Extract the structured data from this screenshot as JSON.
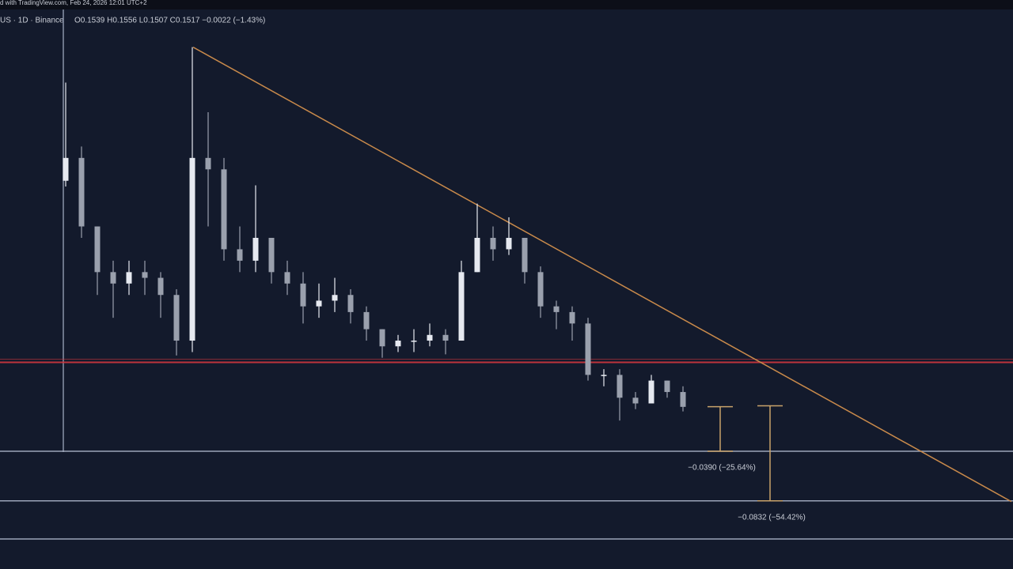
{
  "header": {
    "source": "d with TradingView.com, Feb 24, 2026 12:01 UTC+2",
    "symbol": "US · 1D · Binance",
    "ohlc": "O0.1539  H0.1556  L0.1507  C0.1517  −0.0022 (−1.43%)"
  },
  "chart_data": {
    "type": "candlestick",
    "ylim": [
      0.01,
      0.5
    ],
    "up_color": "#e6e9f0",
    "down_color": "#9aa0ad",
    "candles": {
      "open": [
        0.35,
        0.37,
        0.31,
        0.27,
        0.26,
        0.27,
        0.265,
        0.25,
        0.21,
        0.37,
        0.36,
        0.29,
        0.28,
        0.3,
        0.27,
        0.26,
        0.24,
        0.245,
        0.25,
        0.235,
        0.22,
        0.205,
        0.21,
        0.21,
        0.215,
        0.21,
        0.27,
        0.3,
        0.29,
        0.3,
        0.27,
        0.24,
        0.235,
        0.225,
        0.18,
        0.18,
        0.16,
        0.155,
        0.175,
        0.165
      ],
      "high": [
        0.436,
        0.38,
        0.31,
        0.28,
        0.28,
        0.28,
        0.27,
        0.255,
        0.467,
        0.41,
        0.37,
        0.31,
        0.346,
        0.3,
        0.28,
        0.27,
        0.26,
        0.265,
        0.255,
        0.24,
        0.22,
        0.215,
        0.22,
        0.225,
        0.22,
        0.28,
        0.33,
        0.31,
        0.318,
        0.3,
        0.275,
        0.245,
        0.24,
        0.23,
        0.185,
        0.185,
        0.165,
        0.18,
        0.175,
        0.17
      ],
      "low": [
        0.345,
        0.3,
        0.25,
        0.23,
        0.25,
        0.25,
        0.23,
        0.197,
        0.2,
        0.31,
        0.28,
        0.27,
        0.27,
        0.26,
        0.25,
        0.225,
        0.23,
        0.235,
        0.225,
        0.21,
        0.195,
        0.2,
        0.2,
        0.205,
        0.198,
        0.21,
        0.27,
        0.28,
        0.285,
        0.26,
        0.23,
        0.22,
        0.21,
        0.175,
        0.17,
        0.14,
        0.15,
        0.155,
        0.16,
        0.148
      ],
      "close": [
        0.37,
        0.31,
        0.27,
        0.26,
        0.27,
        0.265,
        0.25,
        0.21,
        0.37,
        0.36,
        0.29,
        0.28,
        0.3,
        0.27,
        0.26,
        0.24,
        0.245,
        0.25,
        0.235,
        0.22,
        0.205,
        0.21,
        0.21,
        0.215,
        0.21,
        0.27,
        0.3,
        0.29,
        0.3,
        0.27,
        0.24,
        0.235,
        0.225,
        0.18,
        0.18,
        0.16,
        0.155,
        0.175,
        0.165,
        0.152
      ]
    },
    "levels": [
      {
        "value": 0.191,
        "color": "#d0363d"
      },
      {
        "value": 0.1131,
        "color": "#aab4c8"
      },
      {
        "value": 0.0697,
        "color": "#aab4c8"
      },
      {
        "value": 0.0363,
        "color": "#aab4c8"
      }
    ],
    "trendline": {
      "from": 0.467,
      "to": 0.069,
      "color": "#c98a4b"
    },
    "measures": [
      {
        "from": 0.1521,
        "to": 0.1131,
        "label": "−0.0390 (−25.64%)",
        "color": "#c9a36a"
      },
      {
        "from": 0.1529,
        "to": 0.0697,
        "label": "−0.0832 (−54.42%)",
        "color": "#c9a36a"
      }
    ]
  }
}
